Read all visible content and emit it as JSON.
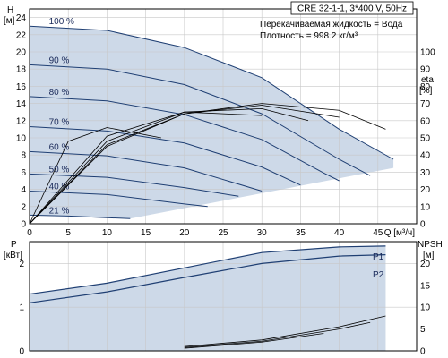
{
  "chart_data": [
    {
      "type": "line",
      "title": "CRE 32-1-1, 3*400 V, 50Hz",
      "info_lines": [
        "Перекачиваемая жидкость = Вода",
        "Плотность = 998.2 кг/м³"
      ],
      "xlabel": "Q [м³/ч]",
      "ylabel_left": "H [м]",
      "ylabel_right": "eta [%]",
      "xlim": [
        0,
        50
      ],
      "ylim_left": [
        0,
        25
      ],
      "ylim_right": [
        0,
        125
      ],
      "x_ticks": [
        0,
        5,
        10,
        15,
        20,
        25,
        30,
        35,
        40,
        45
      ],
      "y_ticks_left": [
        0,
        2,
        4,
        6,
        8,
        10,
        12,
        14,
        16,
        18,
        20,
        22,
        24
      ],
      "y_ticks_right": [
        0,
        10,
        20,
        30,
        40,
        50,
        60,
        70,
        80,
        90,
        100
      ],
      "grid": true,
      "series": [
        {
          "name": "100 %",
          "x": [
            0,
            10,
            20,
            30,
            40,
            47
          ],
          "y": [
            23.0,
            22.5,
            20.5,
            17.0,
            11.0,
            7.5
          ]
        },
        {
          "name": "90 %",
          "x": [
            0,
            10,
            20,
            30,
            40,
            44
          ],
          "y": [
            18.5,
            18.0,
            16.2,
            12.8,
            7.5,
            5.6
          ]
        },
        {
          "name": "80 %",
          "x": [
            0,
            10,
            20,
            30,
            38,
            40
          ],
          "y": [
            14.8,
            14.3,
            12.7,
            9.8,
            5.9,
            5.0
          ]
        },
        {
          "name": "70 %",
          "x": [
            0,
            10,
            20,
            30,
            35
          ],
          "y": [
            11.3,
            10.8,
            9.4,
            6.6,
            4.5
          ]
        },
        {
          "name": "60 %",
          "x": [
            0,
            10,
            20,
            30
          ],
          "y": [
            8.4,
            7.9,
            6.5,
            3.8
          ]
        },
        {
          "name": "50 %",
          "x": [
            0,
            10,
            20,
            27
          ],
          "y": [
            5.8,
            5.4,
            4.2,
            3.2
          ]
        },
        {
          "name": "40 %",
          "x": [
            0,
            10,
            20,
            23
          ],
          "y": [
            3.8,
            3.4,
            2.3,
            2.0
          ]
        },
        {
          "name": "21 %",
          "x": [
            0,
            5,
            10,
            13
          ],
          "y": [
            1.0,
            0.9,
            0.7,
            0.6
          ]
        }
      ],
      "eta": [
        {
          "x": [
            0,
            10,
            20,
            30,
            40,
            46
          ],
          "y": [
            0,
            45,
            64,
            70,
            66,
            55
          ]
        },
        {
          "x": [
            0,
            10,
            20,
            30,
            40
          ],
          "y": [
            0,
            46,
            64,
            69,
            62
          ]
        },
        {
          "x": [
            0,
            10,
            20,
            30,
            36
          ],
          "y": [
            0,
            48,
            65,
            67,
            60
          ]
        },
        {
          "x": [
            0,
            10,
            20,
            30
          ],
          "y": [
            0,
            51,
            65,
            63
          ]
        },
        {
          "x": [
            0,
            5,
            10,
            17
          ],
          "y": [
            0,
            48,
            56,
            50
          ]
        }
      ]
    },
    {
      "type": "line",
      "ylabel_left": "P [кВт]",
      "ylabel_right": "NPSH [м]",
      "xlim": [
        0,
        50
      ],
      "ylim_left": [
        0,
        2.5
      ],
      "ylim_right": [
        0,
        25
      ],
      "y_ticks_left": [
        0,
        1,
        2
      ],
      "y_ticks_right": [
        0,
        5,
        10,
        15,
        20
      ],
      "labels": [
        "P1",
        "P2"
      ],
      "series": [
        {
          "name": "P1",
          "x": [
            0,
            10,
            20,
            30,
            40,
            46
          ],
          "y": [
            1.3,
            1.55,
            1.9,
            2.25,
            2.38,
            2.4
          ]
        },
        {
          "name": "P2",
          "x": [
            0,
            10,
            20,
            30,
            40,
            46
          ],
          "y": [
            1.1,
            1.35,
            1.68,
            2.0,
            2.17,
            2.2
          ]
        }
      ],
      "npsh": [
        {
          "x": [
            20,
            30,
            40,
            46
          ],
          "y": [
            1,
            2.5,
            5.5,
            8
          ]
        },
        {
          "x": [
            20,
            30,
            40,
            44
          ],
          "y": [
            0.8,
            2.2,
            5.0,
            6.5
          ]
        },
        {
          "x": [
            20,
            30,
            38
          ],
          "y": [
            0.6,
            2.0,
            4.0
          ]
        }
      ]
    }
  ]
}
